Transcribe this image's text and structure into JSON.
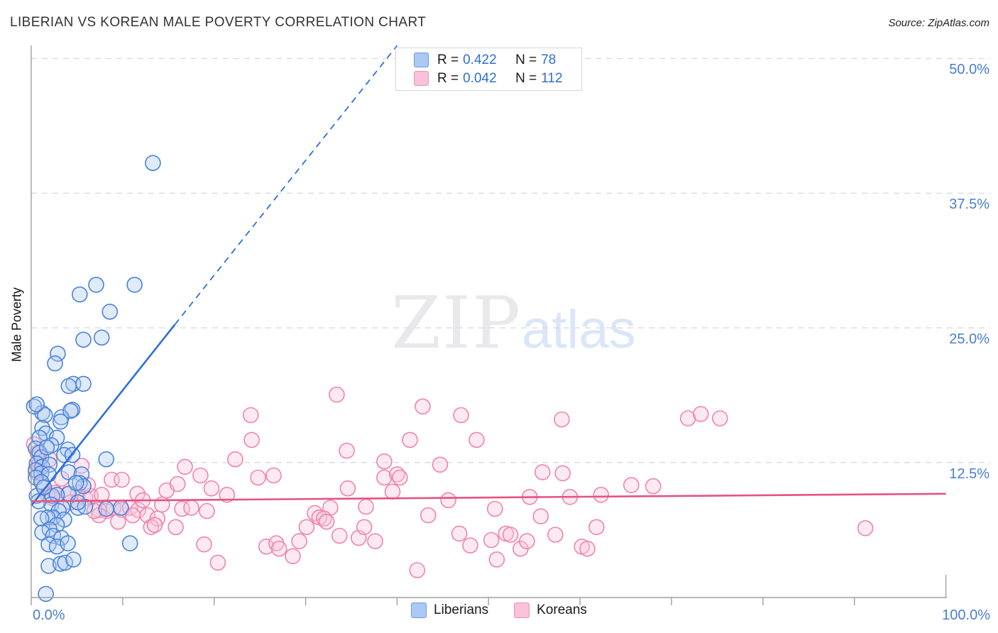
{
  "header": {
    "title": "LIBERIAN VS KOREAN MALE POVERTY CORRELATION CHART",
    "source": "Source: ZipAtlas.com"
  },
  "watermark": {
    "zip": "ZIP",
    "atlas": "atlas"
  },
  "legend_box": {
    "rows": [
      {
        "r_label": "R =",
        "r_value": "0.422",
        "n_label": "N =",
        "n_value": "78"
      },
      {
        "r_label": "R =",
        "r_value": "0.042",
        "n_label": "N =",
        "n_value": "112"
      }
    ]
  },
  "axes": {
    "ylabel": "Male Poverty",
    "y_ticks": [
      {
        "label": "50.0%",
        "value": 50
      },
      {
        "label": "37.5%",
        "value": 37.5
      },
      {
        "label": "25.0%",
        "value": 25
      },
      {
        "label": "12.5%",
        "value": 12.5
      }
    ],
    "x_tick_left": "0.0%",
    "x_tick_right": "100.0%"
  },
  "bottom_legend": {
    "items": [
      {
        "label": "Liberians"
      },
      {
        "label": "Koreans"
      }
    ]
  },
  "chart_data": {
    "type": "scatter",
    "title": "LIBERIAN VS KOREAN MALE POVERTY CORRELATION CHART",
    "xlabel": "",
    "ylabel": "Male Poverty",
    "xlim": [
      0,
      100
    ],
    "ylim": [
      0,
      51.2
    ],
    "grid_y_values": [
      12.5,
      25,
      37.5,
      50
    ],
    "x_tick_values": [
      0,
      10,
      20,
      30,
      40,
      50,
      60,
      70,
      80,
      90,
      100
    ],
    "legend_position": "top-center",
    "colors": {
      "grid": "#d8d8d8",
      "axis": "#a0a0a0",
      "tick_label_blue": "#4a7ed0",
      "blue_fill": "#adcbf3",
      "blue_stroke": "#4a82d9",
      "pink_fill": "#f9c6da",
      "pink_stroke": "#f084ad",
      "blue_trend": "#2e6fd6",
      "pink_trend": "#e5537f"
    },
    "series": [
      {
        "name": "Liberians",
        "R": 0.422,
        "N": 78,
        "points": [
          [
            13.3,
            40.3
          ],
          [
            5.3,
            28.1
          ],
          [
            7.1,
            29.0
          ],
          [
            11.3,
            29.0
          ],
          [
            8.6,
            26.5
          ],
          [
            5.7,
            23.9
          ],
          [
            7.7,
            24.1
          ],
          [
            2.9,
            22.6
          ],
          [
            2.6,
            21.7
          ],
          [
            4.6,
            19.8
          ],
          [
            5.7,
            19.8
          ],
          [
            4.1,
            19.6
          ],
          [
            1.2,
            17.1
          ],
          [
            4.5,
            17.4
          ],
          [
            0.3,
            17.7
          ],
          [
            1.5,
            16.9
          ],
          [
            3.3,
            16.7
          ],
          [
            4.3,
            17.3
          ],
          [
            3.2,
            16.3
          ],
          [
            1.2,
            15.7
          ],
          [
            1.6,
            15.2
          ],
          [
            2.8,
            14.8
          ],
          [
            0.9,
            14.8
          ],
          [
            2.2,
            14.1
          ],
          [
            0.5,
            13.8
          ],
          [
            0.9,
            13.4
          ],
          [
            1.1,
            13.0
          ],
          [
            0.6,
            12.4
          ],
          [
            1.2,
            12.1
          ],
          [
            2.0,
            12.3
          ],
          [
            0.5,
            11.8
          ],
          [
            1.1,
            11.5
          ],
          [
            1.9,
            11.4
          ],
          [
            0.5,
            11.1
          ],
          [
            1.1,
            10.7
          ],
          [
            4.1,
            11.6
          ],
          [
            8.2,
            12.8
          ],
          [
            4.0,
            13.7
          ],
          [
            3.6,
            13.2
          ],
          [
            4.5,
            13.2
          ],
          [
            5.5,
            11.4
          ],
          [
            5.3,
            10.6
          ],
          [
            5.7,
            10.3
          ],
          [
            4.1,
            9.6
          ],
          [
            2.3,
            9.4
          ],
          [
            2.8,
            9.5
          ],
          [
            0.6,
            9.4
          ],
          [
            2.2,
            8.6
          ],
          [
            3.4,
            8.3
          ],
          [
            5.1,
            8.3
          ],
          [
            3.0,
            8.0
          ],
          [
            2.4,
            7.4
          ],
          [
            3.6,
            7.2
          ],
          [
            1.8,
            7.4
          ],
          [
            1.1,
            7.3
          ],
          [
            2.8,
            6.7
          ],
          [
            2.0,
            6.3
          ],
          [
            1.2,
            6.0
          ],
          [
            2.4,
            5.7
          ],
          [
            3.3,
            5.5
          ],
          [
            1.9,
            4.9
          ],
          [
            2.8,
            4.7
          ],
          [
            4.0,
            5.0
          ],
          [
            10.8,
            5.0
          ],
          [
            8.2,
            8.2
          ],
          [
            9.8,
            8.3
          ],
          [
            5.9,
            8.4
          ],
          [
            5.1,
            8.8
          ],
          [
            4.9,
            10.6
          ],
          [
            1.9,
            2.9
          ],
          [
            3.2,
            3.1
          ],
          [
            3.7,
            3.2
          ],
          [
            4.6,
            3.5
          ],
          [
            1.6,
            0.3
          ],
          [
            0.6,
            17.9
          ],
          [
            1.4,
            10.2
          ],
          [
            0.8,
            8.9
          ],
          [
            1.7,
            13.9
          ]
        ]
      },
      {
        "name": "Koreans",
        "R": 0.042,
        "N": 112,
        "points": [
          [
            0.3,
            14.2
          ],
          [
            0.9,
            12.4
          ],
          [
            0.5,
            11.6
          ],
          [
            1.8,
            9.5
          ],
          [
            2.3,
            9.2
          ],
          [
            5.1,
            9.7
          ],
          [
            5.9,
            9.2
          ],
          [
            6.5,
            9.4
          ],
          [
            7.7,
            9.5
          ],
          [
            8.8,
            10.9
          ],
          [
            9.9,
            10.9
          ],
          [
            11.6,
            9.6
          ],
          [
            7.4,
            8.1
          ],
          [
            8.2,
            8.0
          ],
          [
            9.0,
            8.3
          ],
          [
            9.9,
            8.1
          ],
          [
            7.4,
            7.6
          ],
          [
            10.8,
            8.3
          ],
          [
            11.7,
            8.1
          ],
          [
            4.0,
            9.6
          ],
          [
            2.6,
            9.7
          ],
          [
            16.8,
            12.1
          ],
          [
            18.5,
            11.3
          ],
          [
            19.7,
            10.1
          ],
          [
            21.4,
            9.5
          ],
          [
            22.3,
            12.8
          ],
          [
            24.0,
            16.9
          ],
          [
            24.1,
            14.6
          ],
          [
            24.8,
            11.1
          ],
          [
            26.5,
            11.3
          ],
          [
            14.8,
            9.9
          ],
          [
            6.9,
            8.0
          ],
          [
            11.1,
            7.6
          ],
          [
            12.7,
            7.6
          ],
          [
            13.8,
            7.3
          ],
          [
            13.1,
            6.5
          ],
          [
            13.5,
            6.7
          ],
          [
            15.8,
            6.5
          ],
          [
            16.5,
            8.2
          ],
          [
            17.5,
            8.3
          ],
          [
            19.2,
            8.0
          ],
          [
            18.9,
            4.9
          ],
          [
            20.4,
            3.2
          ],
          [
            25.7,
            4.7
          ],
          [
            26.8,
            5.0
          ],
          [
            27.1,
            4.5
          ],
          [
            28.6,
            3.8
          ],
          [
            29.3,
            5.2
          ],
          [
            30.1,
            6.5
          ],
          [
            31.0,
            7.8
          ],
          [
            31.5,
            7.4
          ],
          [
            33.4,
            18.8
          ],
          [
            42.8,
            17.7
          ],
          [
            47.0,
            16.9
          ],
          [
            58.0,
            16.5
          ],
          [
            41.4,
            14.6
          ],
          [
            48.7,
            14.6
          ],
          [
            34.5,
            13.6
          ],
          [
            38.6,
            12.6
          ],
          [
            38.6,
            11.1
          ],
          [
            40.0,
            11.4
          ],
          [
            40.3,
            11.1
          ],
          [
            39.5,
            9.8
          ],
          [
            34.6,
            10.1
          ],
          [
            36.6,
            8.4
          ],
          [
            32.7,
            8.3
          ],
          [
            32.0,
            7.3
          ],
          [
            32.3,
            7.0
          ],
          [
            33.7,
            5.7
          ],
          [
            35.8,
            5.5
          ],
          [
            36.4,
            6.5
          ],
          [
            37.6,
            5.2
          ],
          [
            42.2,
            2.5
          ],
          [
            43.4,
            7.6
          ],
          [
            45.6,
            9.0
          ],
          [
            46.8,
            5.9
          ],
          [
            48.0,
            4.8
          ],
          [
            50.3,
            5.3
          ],
          [
            50.7,
            8.2
          ],
          [
            50.9,
            3.5
          ],
          [
            51.9,
            5.9
          ],
          [
            52.4,
            5.8
          ],
          [
            53.5,
            4.5
          ],
          [
            54.2,
            5.2
          ],
          [
            54.5,
            9.3
          ],
          [
            55.7,
            7.5
          ],
          [
            55.9,
            11.6
          ],
          [
            57.3,
            5.8
          ],
          [
            58.1,
            11.5
          ],
          [
            58.9,
            9.3
          ],
          [
            60.2,
            4.7
          ],
          [
            60.8,
            4.5
          ],
          [
            61.8,
            6.5
          ],
          [
            62.3,
            9.5
          ],
          [
            65.6,
            10.4
          ],
          [
            71.8,
            16.6
          ],
          [
            73.2,
            17.0
          ],
          [
            75.3,
            16.6
          ],
          [
            91.2,
            6.4
          ],
          [
            68.0,
            10.3
          ],
          [
            5.5,
            12.2
          ],
          [
            3.3,
            11.0
          ],
          [
            1.2,
            10.5
          ],
          [
            2.0,
            12.8
          ],
          [
            0.7,
            13.4
          ],
          [
            4.3,
            8.8
          ],
          [
            6.2,
            10.4
          ],
          [
            12.2,
            9.0
          ],
          [
            14.3,
            8.6
          ],
          [
            44.7,
            12.3
          ],
          [
            16.0,
            10.5
          ],
          [
            9.5,
            7.0
          ]
        ]
      }
    ],
    "trend_lines": [
      {
        "series": "Liberians",
        "style": "solid",
        "from": [
          0,
          8.5
        ],
        "to": [
          15.7,
          25.3
        ]
      },
      {
        "series": "Liberians",
        "style": "dashed",
        "from": [
          15.7,
          25.3
        ],
        "to": [
          40.0,
          51.2
        ]
      },
      {
        "series": "Koreans",
        "style": "solid",
        "from": [
          0,
          8.9
        ],
        "to": [
          100,
          9.6
        ]
      }
    ]
  }
}
